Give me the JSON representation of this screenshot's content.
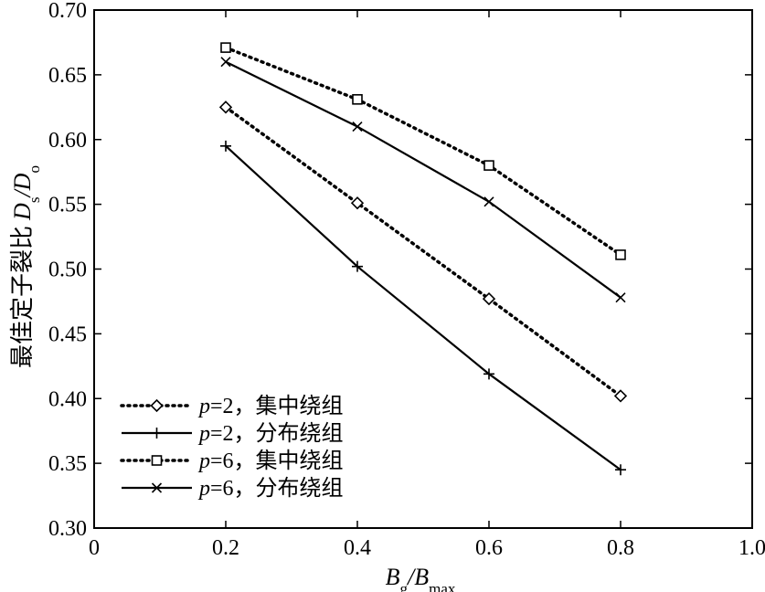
{
  "chart_data": {
    "type": "line",
    "xlabel": "Bg/Bmax",
    "xlabel_parts": {
      "main": "B",
      "sub1": "g",
      "sep": "/",
      "main2": "B",
      "sub2": "max"
    },
    "ylabel": "最佳定子裂比 Ds/Do",
    "ylabel_parts": {
      "prefix": "最佳定子裂比",
      "main": "D",
      "sub1": "s",
      "sep": "/",
      "main2": "D",
      "sub2": "o"
    },
    "xlim": [
      0,
      1.0
    ],
    "ylim": [
      0.3,
      0.7
    ],
    "x_ticks": [
      0,
      0.2,
      0.4,
      0.6,
      0.8,
      1.0
    ],
    "x_tick_labels": [
      "0",
      "0.2",
      "0.4",
      "0.6",
      "0.8",
      "1.0"
    ],
    "y_ticks": [
      0.3,
      0.35,
      0.4,
      0.45,
      0.5,
      0.55,
      0.6,
      0.65,
      0.7
    ],
    "y_tick_labels": [
      "0.30",
      "0.35",
      "0.40",
      "0.45",
      "0.50",
      "0.55",
      "0.60",
      "0.65",
      "0.70"
    ],
    "grid": false,
    "legend_position": "bottom-left",
    "x": [
      0.2,
      0.4,
      0.6,
      0.8
    ],
    "series": [
      {
        "name": "p=2，集中绕组",
        "name_var": "p",
        "name_rest": "=2，集中绕组",
        "values": [
          0.625,
          0.551,
          0.477,
          0.402
        ],
        "marker": "diamond",
        "line": "dotted",
        "color": "#000000"
      },
      {
        "name": "p=2，分布绕组",
        "name_var": "p",
        "name_rest": "=2，分布绕组",
        "values": [
          0.595,
          0.502,
          0.419,
          0.345
        ],
        "marker": "plus",
        "line": "solid",
        "color": "#000000"
      },
      {
        "name": "p=6，集中绕组",
        "name_var": "p",
        "name_rest": "=6，集中绕组",
        "values": [
          0.671,
          0.631,
          0.58,
          0.511
        ],
        "marker": "square",
        "line": "dotted",
        "color": "#000000"
      },
      {
        "name": "p=6，分布绕组",
        "name_var": "p",
        "name_rest": "=6，分布绕组",
        "values": [
          0.66,
          0.61,
          0.552,
          0.478
        ],
        "marker": "x",
        "line": "solid",
        "color": "#000000"
      }
    ]
  }
}
